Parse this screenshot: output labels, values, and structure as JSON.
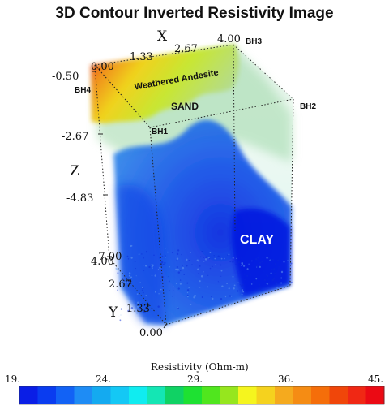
{
  "title": "3D Contour  Inverted Resistivity Image",
  "axes": {
    "x": {
      "label": "X",
      "ticks": [
        "0.00",
        "1.33",
        "2.67",
        "4.00"
      ]
    },
    "y": {
      "label": "Y",
      "ticks": [
        "4.00",
        "2.67",
        "1.33",
        "0.00"
      ]
    },
    "z": {
      "label": "Z",
      "ticks": [
        "-0.50",
        "-2.67",
        "-4.83",
        "-7.00"
      ]
    }
  },
  "boreholes": [
    "BH1",
    "BH2",
    "BH3",
    "BH4"
  ],
  "annotations": {
    "weathered": "Weathered Andesite",
    "sand": "SAND",
    "clay": "CLAY"
  },
  "colorbar": {
    "title": "Resistivity (Ohm-m)",
    "tick_labels": [
      "19.",
      "24.",
      "29.",
      "36.",
      "45."
    ],
    "colors": [
      "#0a1ee6",
      "#0a3cf0",
      "#1262f5",
      "#1e8cf5",
      "#14aaf0",
      "#14c8f5",
      "#10ecf0",
      "#14e6b4",
      "#10d264",
      "#1ee132",
      "#50e61e",
      "#96e61e",
      "#f5f51e",
      "#f5d21e",
      "#f5aa1e",
      "#f58c14",
      "#f56e0a",
      "#f0460a",
      "#f02814",
      "#eb0a14"
    ]
  }
}
